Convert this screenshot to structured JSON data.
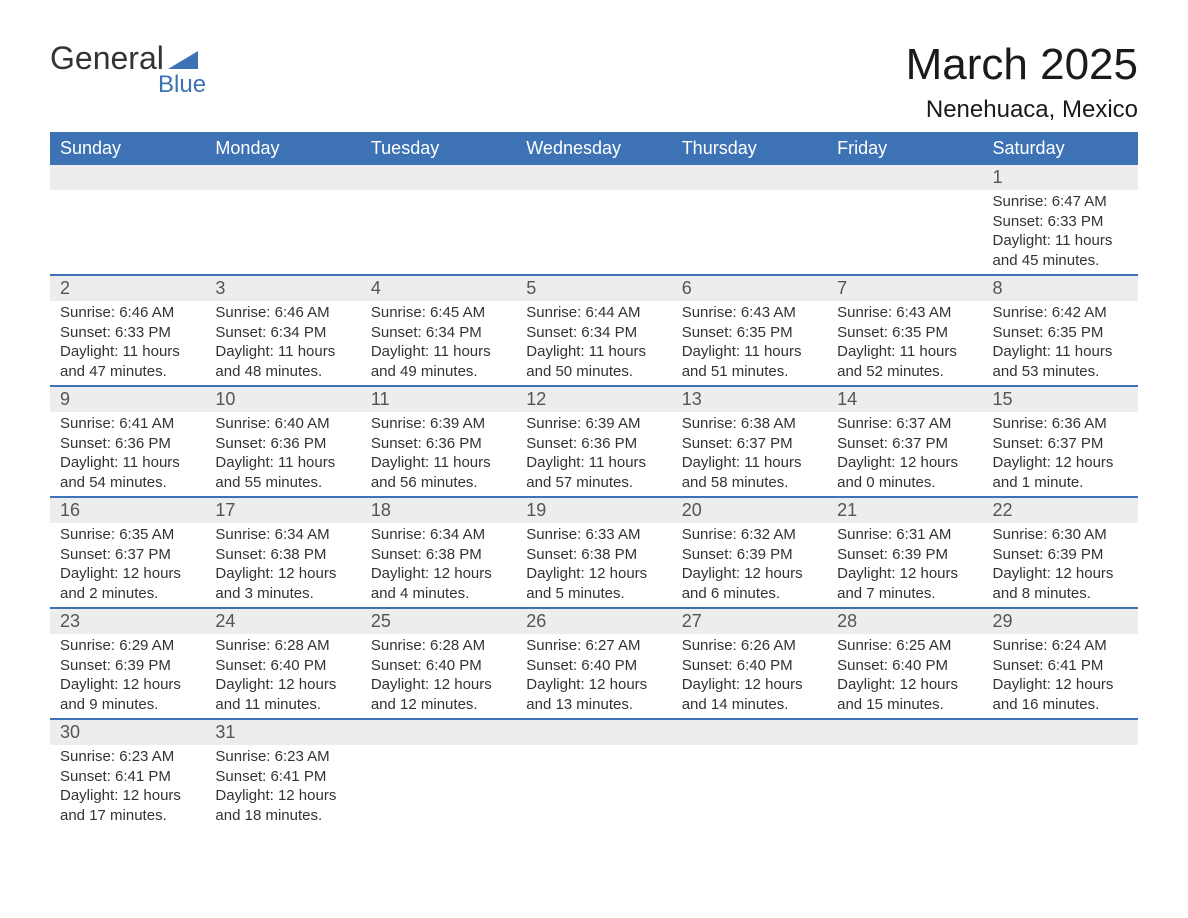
{
  "logo": {
    "word1": "General",
    "word2": "Blue",
    "text_color": "#333333",
    "accent_color": "#3d72b4"
  },
  "header": {
    "title": "March 2025",
    "location": "Nenehuaca, Mexico"
  },
  "calendar": {
    "header_bg": "#3d72b4",
    "header_fg": "#ffffff",
    "row_sep_color": "#3d72b4",
    "daynum_bg": "#ededed",
    "columns": [
      "Sunday",
      "Monday",
      "Tuesday",
      "Wednesday",
      "Thursday",
      "Friday",
      "Saturday"
    ],
    "weeks": [
      [
        {
          "day": "",
          "sunrise": "",
          "sunset": "",
          "daylight": ""
        },
        {
          "day": "",
          "sunrise": "",
          "sunset": "",
          "daylight": ""
        },
        {
          "day": "",
          "sunrise": "",
          "sunset": "",
          "daylight": ""
        },
        {
          "day": "",
          "sunrise": "",
          "sunset": "",
          "daylight": ""
        },
        {
          "day": "",
          "sunrise": "",
          "sunset": "",
          "daylight": ""
        },
        {
          "day": "",
          "sunrise": "",
          "sunset": "",
          "daylight": ""
        },
        {
          "day": "1",
          "sunrise": "Sunrise: 6:47 AM",
          "sunset": "Sunset: 6:33 PM",
          "daylight": "Daylight: 11 hours and 45 minutes."
        }
      ],
      [
        {
          "day": "2",
          "sunrise": "Sunrise: 6:46 AM",
          "sunset": "Sunset: 6:33 PM",
          "daylight": "Daylight: 11 hours and 47 minutes."
        },
        {
          "day": "3",
          "sunrise": "Sunrise: 6:46 AM",
          "sunset": "Sunset: 6:34 PM",
          "daylight": "Daylight: 11 hours and 48 minutes."
        },
        {
          "day": "4",
          "sunrise": "Sunrise: 6:45 AM",
          "sunset": "Sunset: 6:34 PM",
          "daylight": "Daylight: 11 hours and 49 minutes."
        },
        {
          "day": "5",
          "sunrise": "Sunrise: 6:44 AM",
          "sunset": "Sunset: 6:34 PM",
          "daylight": "Daylight: 11 hours and 50 minutes."
        },
        {
          "day": "6",
          "sunrise": "Sunrise: 6:43 AM",
          "sunset": "Sunset: 6:35 PM",
          "daylight": "Daylight: 11 hours and 51 minutes."
        },
        {
          "day": "7",
          "sunrise": "Sunrise: 6:43 AM",
          "sunset": "Sunset: 6:35 PM",
          "daylight": "Daylight: 11 hours and 52 minutes."
        },
        {
          "day": "8",
          "sunrise": "Sunrise: 6:42 AM",
          "sunset": "Sunset: 6:35 PM",
          "daylight": "Daylight: 11 hours and 53 minutes."
        }
      ],
      [
        {
          "day": "9",
          "sunrise": "Sunrise: 6:41 AM",
          "sunset": "Sunset: 6:36 PM",
          "daylight": "Daylight: 11 hours and 54 minutes."
        },
        {
          "day": "10",
          "sunrise": "Sunrise: 6:40 AM",
          "sunset": "Sunset: 6:36 PM",
          "daylight": "Daylight: 11 hours and 55 minutes."
        },
        {
          "day": "11",
          "sunrise": "Sunrise: 6:39 AM",
          "sunset": "Sunset: 6:36 PM",
          "daylight": "Daylight: 11 hours and 56 minutes."
        },
        {
          "day": "12",
          "sunrise": "Sunrise: 6:39 AM",
          "sunset": "Sunset: 6:36 PM",
          "daylight": "Daylight: 11 hours and 57 minutes."
        },
        {
          "day": "13",
          "sunrise": "Sunrise: 6:38 AM",
          "sunset": "Sunset: 6:37 PM",
          "daylight": "Daylight: 11 hours and 58 minutes."
        },
        {
          "day": "14",
          "sunrise": "Sunrise: 6:37 AM",
          "sunset": "Sunset: 6:37 PM",
          "daylight": "Daylight: 12 hours and 0 minutes."
        },
        {
          "day": "15",
          "sunrise": "Sunrise: 6:36 AM",
          "sunset": "Sunset: 6:37 PM",
          "daylight": "Daylight: 12 hours and 1 minute."
        }
      ],
      [
        {
          "day": "16",
          "sunrise": "Sunrise: 6:35 AM",
          "sunset": "Sunset: 6:37 PM",
          "daylight": "Daylight: 12 hours and 2 minutes."
        },
        {
          "day": "17",
          "sunrise": "Sunrise: 6:34 AM",
          "sunset": "Sunset: 6:38 PM",
          "daylight": "Daylight: 12 hours and 3 minutes."
        },
        {
          "day": "18",
          "sunrise": "Sunrise: 6:34 AM",
          "sunset": "Sunset: 6:38 PM",
          "daylight": "Daylight: 12 hours and 4 minutes."
        },
        {
          "day": "19",
          "sunrise": "Sunrise: 6:33 AM",
          "sunset": "Sunset: 6:38 PM",
          "daylight": "Daylight: 12 hours and 5 minutes."
        },
        {
          "day": "20",
          "sunrise": "Sunrise: 6:32 AM",
          "sunset": "Sunset: 6:39 PM",
          "daylight": "Daylight: 12 hours and 6 minutes."
        },
        {
          "day": "21",
          "sunrise": "Sunrise: 6:31 AM",
          "sunset": "Sunset: 6:39 PM",
          "daylight": "Daylight: 12 hours and 7 minutes."
        },
        {
          "day": "22",
          "sunrise": "Sunrise: 6:30 AM",
          "sunset": "Sunset: 6:39 PM",
          "daylight": "Daylight: 12 hours and 8 minutes."
        }
      ],
      [
        {
          "day": "23",
          "sunrise": "Sunrise: 6:29 AM",
          "sunset": "Sunset: 6:39 PM",
          "daylight": "Daylight: 12 hours and 9 minutes."
        },
        {
          "day": "24",
          "sunrise": "Sunrise: 6:28 AM",
          "sunset": "Sunset: 6:40 PM",
          "daylight": "Daylight: 12 hours and 11 minutes."
        },
        {
          "day": "25",
          "sunrise": "Sunrise: 6:28 AM",
          "sunset": "Sunset: 6:40 PM",
          "daylight": "Daylight: 12 hours and 12 minutes."
        },
        {
          "day": "26",
          "sunrise": "Sunrise: 6:27 AM",
          "sunset": "Sunset: 6:40 PM",
          "daylight": "Daylight: 12 hours and 13 minutes."
        },
        {
          "day": "27",
          "sunrise": "Sunrise: 6:26 AM",
          "sunset": "Sunset: 6:40 PM",
          "daylight": "Daylight: 12 hours and 14 minutes."
        },
        {
          "day": "28",
          "sunrise": "Sunrise: 6:25 AM",
          "sunset": "Sunset: 6:40 PM",
          "daylight": "Daylight: 12 hours and 15 minutes."
        },
        {
          "day": "29",
          "sunrise": "Sunrise: 6:24 AM",
          "sunset": "Sunset: 6:41 PM",
          "daylight": "Daylight: 12 hours and 16 minutes."
        }
      ],
      [
        {
          "day": "30",
          "sunrise": "Sunrise: 6:23 AM",
          "sunset": "Sunset: 6:41 PM",
          "daylight": "Daylight: 12 hours and 17 minutes."
        },
        {
          "day": "31",
          "sunrise": "Sunrise: 6:23 AM",
          "sunset": "Sunset: 6:41 PM",
          "daylight": "Daylight: 12 hours and 18 minutes."
        },
        {
          "day": "",
          "sunrise": "",
          "sunset": "",
          "daylight": ""
        },
        {
          "day": "",
          "sunrise": "",
          "sunset": "",
          "daylight": ""
        },
        {
          "day": "",
          "sunrise": "",
          "sunset": "",
          "daylight": ""
        },
        {
          "day": "",
          "sunrise": "",
          "sunset": "",
          "daylight": ""
        },
        {
          "day": "",
          "sunrise": "",
          "sunset": "",
          "daylight": ""
        }
      ]
    ]
  }
}
